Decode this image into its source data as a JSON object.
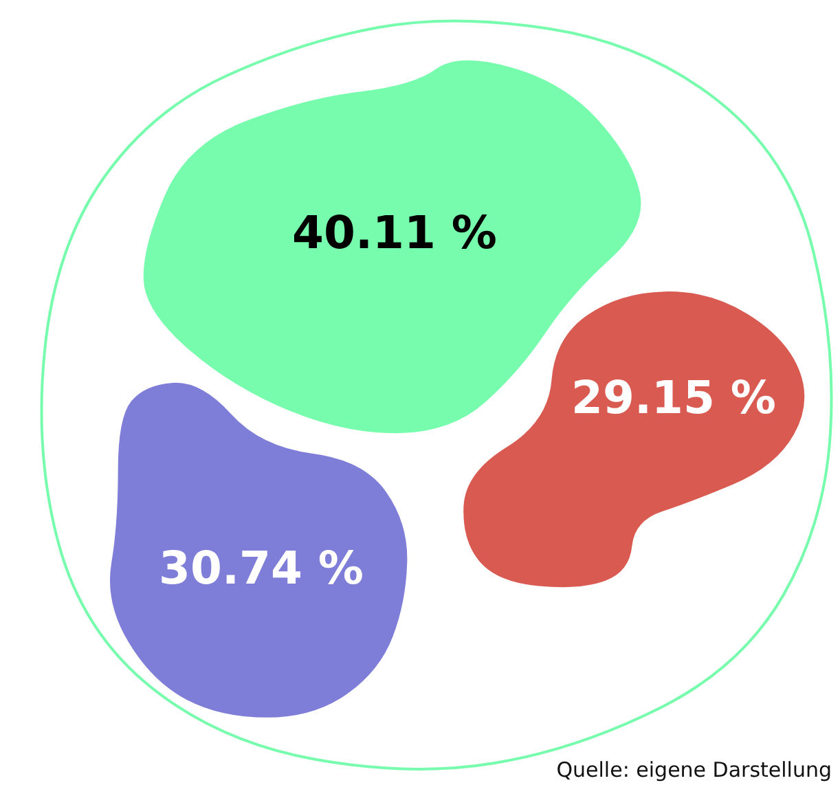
{
  "chart_data": {
    "type": "other",
    "categories": [
      null,
      null,
      null
    ],
    "values": [
      40.11,
      29.15,
      30.74
    ],
    "value_labels": [
      "40.11 %",
      "29.15 %",
      "30.74 %"
    ],
    "colors": [
      "#77fcad",
      "#d95a50",
      "#7e7dd8"
    ],
    "annotations": [
      "Quelle: eigene Darstellung"
    ]
  }
}
